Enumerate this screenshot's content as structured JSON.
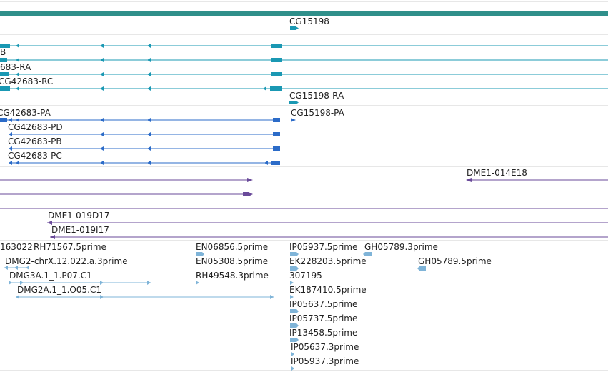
{
  "colors": {
    "top_bar": "#2f8f8a",
    "transcript_teal": "#1a98b3",
    "transcript_blue": "#2b6bc8",
    "clone_purple": "#6a4a9a",
    "est_light": "#7fb4d8",
    "separator": "#cfcfcf",
    "text": "#222222"
  },
  "tracks": {
    "gene_model": {
      "label": "CG15198"
    },
    "transcripts_a": {
      "labels": [
        "B",
        "683-RA",
        "CG42683-RC",
        "CG15198-RA"
      ]
    },
    "transcripts_b": {
      "labels": [
        "CG42683-PA",
        "CG15198-PA",
        "CG42683-PD",
        "CG42683-PB",
        "CG42683-PC"
      ]
    },
    "clones_a": {
      "labels": [
        "DME1-014E18"
      ]
    },
    "clones_b": {
      "labels": [
        "DME1-019D17",
        "DME1-019I17"
      ]
    },
    "ests": {
      "labels": [
        "163022",
        "RH71567.5prime",
        "EN06856.5prime",
        "IP05937.5prime",
        "GH05789.3prime",
        "DMG2-chrX.12.022.a.3prime",
        "EN05308.5prime",
        "EK228203.5prime",
        "GH05789.5prime",
        "DMG3A.1_1.P07.C1",
        "RH49548.3prime",
        "307195",
        "DMG2A.1_1.O05.C1",
        "EK187410.5prime",
        "IP05637.5prime",
        "IP05737.5prime",
        "IP13458.5prime",
        "IP05637.3prime",
        "IP05937.3prime"
      ]
    }
  }
}
